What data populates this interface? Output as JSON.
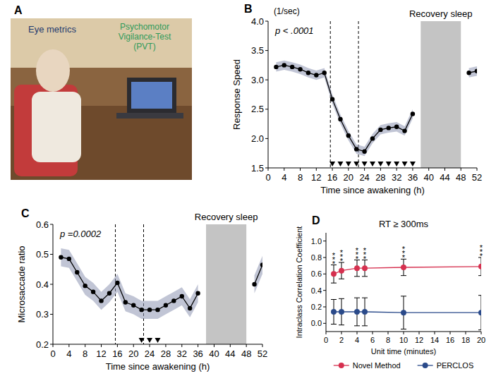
{
  "photo": {
    "panel_label": "A",
    "labels": [
      "Eye metrics",
      "Psychomotor Vigilance-Test (PVT)"
    ],
    "colors": [
      "#1f3a6e",
      "#2e9a5a"
    ]
  },
  "chart_data": [
    {
      "type": "line",
      "panel_label": "B",
      "unit_label": "(1/sec)",
      "y_label": "Response Speed",
      "x_label": "Time since awakening (h)",
      "annotation": "p < .0001",
      "shade_label": "Recovery sleep",
      "shade": [
        38,
        48
      ],
      "vlines": [
        15.5,
        22.5
      ],
      "markers_x": [
        16,
        18,
        20,
        22,
        24,
        26,
        28,
        30,
        32,
        34,
        36
      ],
      "xlim": [
        0,
        52
      ],
      "xticks": [
        0,
        4,
        8,
        12,
        16,
        20,
        24,
        28,
        32,
        36,
        40,
        44,
        48,
        52
      ],
      "ylim": [
        1.5,
        4.0
      ],
      "yticks": [
        1.5,
        {
          "value": 2,
          "label": "2.0"
        },
        2.5,
        {
          "value": 3,
          "label": "3.0"
        },
        3.5,
        {
          "value": 4,
          "label": "4.0"
        }
      ],
      "color": "#000000",
      "marker": "circle",
      "series": [
        {
          "x": [
            2,
            4,
            6,
            8,
            10,
            12,
            14,
            16,
            18,
            20,
            22,
            24,
            26,
            28,
            30,
            32,
            34,
            36
          ],
          "values": [
            3.22,
            3.25,
            3.22,
            3.18,
            3.12,
            3.08,
            3.12,
            2.67,
            2.33,
            2.05,
            1.82,
            1.78,
            2.0,
            2.15,
            2.18,
            2.2,
            2.13,
            2.42
          ],
          "error": [
            0.08,
            0.08,
            0.08,
            0.08,
            0.08,
            0.08,
            0.08,
            0.08,
            0.08,
            0.08,
            0.08,
            0.08,
            0.08,
            0.08,
            0.08,
            0.08,
            0.08,
            0.08
          ]
        },
        {
          "x": [
            50,
            52
          ],
          "values": [
            3.12,
            3.15
          ],
          "error": [
            0.08,
            0.08
          ]
        }
      ]
    },
    {
      "type": "line",
      "panel_label": "C",
      "y_label": "Microsaccade ratio",
      "x_label": "Time since awakening (h)",
      "annotation": "p =0.0002",
      "shade_label": "Recovery sleep",
      "shade": [
        38,
        48
      ],
      "vlines": [
        15.5,
        22.5
      ],
      "markers_x": [
        22,
        24,
        26
      ],
      "xlim": [
        0,
        52
      ],
      "xticks": [
        0,
        4,
        8,
        12,
        16,
        20,
        24,
        28,
        32,
        36,
        40,
        44,
        48,
        52
      ],
      "ylim": [
        0.2,
        0.6
      ],
      "yticks": [
        0.2,
        0.3,
        0.4,
        0.5,
        0.6
      ],
      "color": "#000000",
      "marker": "circle",
      "series": [
        {
          "x": [
            2,
            4,
            6,
            8,
            10,
            12,
            14,
            16,
            18,
            20,
            22,
            24,
            26,
            28,
            30,
            32,
            34,
            36
          ],
          "values": [
            0.49,
            0.485,
            0.44,
            0.395,
            0.375,
            0.345,
            0.37,
            0.405,
            0.34,
            0.33,
            0.315,
            0.315,
            0.315,
            0.33,
            0.345,
            0.36,
            0.32,
            0.37
          ],
          "error": [
            0.03,
            0.03,
            0.03,
            0.03,
            0.03,
            0.03,
            0.03,
            0.03,
            0.03,
            0.03,
            0.03,
            0.03,
            0.03,
            0.03,
            0.03,
            0.03,
            0.03,
            0.03
          ]
        },
        {
          "x": [
            50,
            52
          ],
          "values": [
            0.4,
            0.465
          ],
          "error": [
            0.03,
            0.03
          ]
        }
      ]
    },
    {
      "type": "errorbar",
      "panel_label": "D",
      "title": "RT ≥ 300ms",
      "x_label": "Unit time (minutes)",
      "y_label": "Intraclass Correlation Coefficient",
      "xlim": [
        0,
        20
      ],
      "xticks": [
        0,
        2,
        4,
        6,
        8,
        10,
        12,
        14,
        16,
        18,
        20
      ],
      "ylim": [
        -0.1,
        1.1
      ],
      "yticks": [
        {
          "value": 0,
          "label": "0.0"
        },
        0.2,
        0.4,
        0.6,
        0.8,
        {
          "value": 1,
          "label": "1.0"
        }
      ],
      "legend": "bottom",
      "marker": "circle",
      "series": [
        {
          "name": "Novel Method",
          "color": "#d6304f",
          "x": [
            1,
            2,
            4,
            5,
            10,
            20
          ],
          "values": [
            0.6,
            0.64,
            0.67,
            0.67,
            0.68,
            0.69
          ],
          "error": [
            0.11,
            0.1,
            0.1,
            0.1,
            0.1,
            0.11
          ],
          "significance": [
            "***",
            "***",
            "***",
            "***",
            "***",
            "***"
          ]
        },
        {
          "name": "PERCLOS",
          "color": "#2a4a8a",
          "x": [
            1,
            2,
            4,
            5,
            10,
            20
          ],
          "values": [
            0.14,
            0.14,
            0.14,
            0.14,
            0.13,
            0.13
          ],
          "error": [
            0.15,
            0.16,
            0.17,
            0.17,
            0.2,
            0.21
          ]
        }
      ]
    }
  ]
}
